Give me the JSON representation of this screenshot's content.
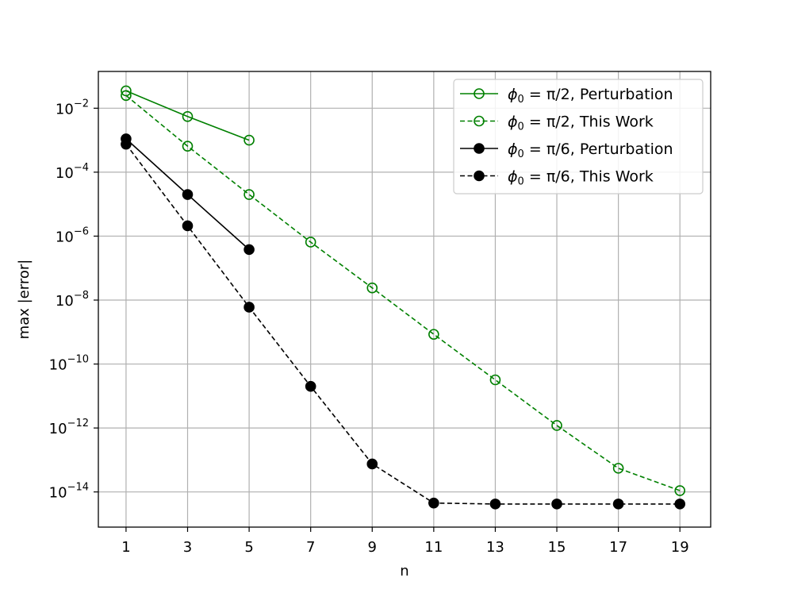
{
  "chart_data": {
    "type": "line",
    "title": "",
    "xlabel": "n",
    "ylabel": "max |error|",
    "y_scale": "log",
    "xlim": [
      0.1,
      20.0
    ],
    "ylim_log10": [
      -15.1,
      -0.85
    ],
    "grid": true,
    "legend_position": "top-right",
    "x_ticks": [
      1,
      3,
      5,
      7,
      9,
      11,
      13,
      15,
      17,
      19
    ],
    "y_ticks": [
      {
        "exp": -2,
        "base": "10",
        "exp_label": "−2"
      },
      {
        "exp": -4,
        "base": "10",
        "exp_label": "−4"
      },
      {
        "exp": -6,
        "base": "10",
        "exp_label": "−6"
      },
      {
        "exp": -8,
        "base": "10",
        "exp_label": "−8"
      },
      {
        "exp": -10,
        "base": "10",
        "exp_label": "−10"
      },
      {
        "exp": -12,
        "base": "10",
        "exp_label": "−12"
      },
      {
        "exp": -14,
        "base": "10",
        "exp_label": "−14"
      }
    ],
    "series": [
      {
        "name": "ϕ0 = π/2, Perturbation",
        "legend": {
          "phi": "ϕ",
          "sub": "0",
          "rest": " = π/2, Perturbation"
        },
        "color": "#008000",
        "dash": false,
        "marker": "open-circle",
        "x": [
          1,
          3,
          5
        ],
        "y": [
          0.035,
          0.0055,
          0.001
        ]
      },
      {
        "name": "ϕ0 = π/2, This Work",
        "legend": {
          "phi": "ϕ",
          "sub": "0",
          "rest": " = π/2, This Work"
        },
        "color": "#008000",
        "dash": true,
        "marker": "open-circle",
        "x": [
          1,
          3,
          5,
          7,
          9,
          11,
          13,
          15,
          17,
          19
        ],
        "y": [
          0.025,
          0.00065,
          2e-05,
          6.5e-07,
          2.4e-08,
          8.5e-10,
          3.2e-11,
          1.2e-12,
          5.5e-14,
          1.1e-14
        ]
      },
      {
        "name": "ϕ0 = π/6, Perturbation",
        "legend": {
          "phi": "ϕ",
          "sub": "0",
          "rest": " = π/6, Perturbation"
        },
        "color": "#000000",
        "dash": false,
        "marker": "filled-circle",
        "x": [
          1,
          3,
          5
        ],
        "y": [
          0.0011,
          2e-05,
          3.8e-07
        ]
      },
      {
        "name": "ϕ0 = π/6, This Work",
        "legend": {
          "phi": "ϕ",
          "sub": "0",
          "rest": " = π/6, This Work"
        },
        "color": "#000000",
        "dash": true,
        "marker": "filled-circle",
        "x": [
          1,
          3,
          5,
          7,
          9,
          11,
          13,
          15,
          17,
          19
        ],
        "y": [
          0.00075,
          2.1e-06,
          6e-09,
          2e-11,
          7.5e-14,
          4.5e-15,
          4.2e-15,
          4.2e-15,
          4.2e-15,
          4.2e-15
        ]
      }
    ]
  }
}
